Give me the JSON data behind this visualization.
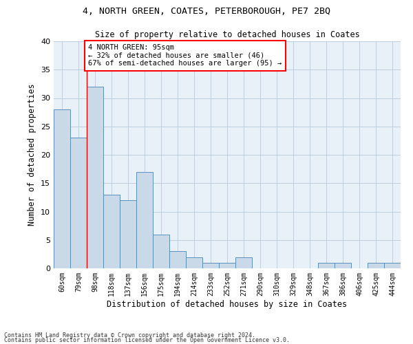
{
  "title1": "4, NORTH GREEN, COATES, PETERBOROUGH, PE7 2BQ",
  "title2": "Size of property relative to detached houses in Coates",
  "xlabel": "Distribution of detached houses by size in Coates",
  "ylabel": "Number of detached properties",
  "categories": [
    "60sqm",
    "79sqm",
    "98sqm",
    "118sqm",
    "137sqm",
    "156sqm",
    "175sqm",
    "194sqm",
    "214sqm",
    "233sqm",
    "252sqm",
    "271sqm",
    "290sqm",
    "310sqm",
    "329sqm",
    "348sqm",
    "367sqm",
    "386sqm",
    "406sqm",
    "425sqm",
    "444sqm"
  ],
  "values": [
    28,
    23,
    32,
    13,
    12,
    17,
    6,
    3,
    2,
    1,
    1,
    2,
    0,
    0,
    0,
    0,
    1,
    1,
    0,
    1,
    1
  ],
  "bar_color": "#c9d9e8",
  "bar_edge_color": "#5a8fbf",
  "grid_color": "#b8c8d8",
  "background_color": "#e8f0f8",
  "annotation_text": "4 NORTH GREEN: 95sqm\n← 32% of detached houses are smaller (46)\n67% of semi-detached houses are larger (95) →",
  "footnote1": "Contains HM Land Registry data © Crown copyright and database right 2024.",
  "footnote2": "Contains public sector information licensed under the Open Government Licence v3.0.",
  "ylim": [
    0,
    40
  ],
  "yticks": [
    0,
    5,
    10,
    15,
    20,
    25,
    30,
    35,
    40
  ],
  "title1_fontsize": 9.5,
  "title2_fontsize": 8.5,
  "xlabel_fontsize": 8.5,
  "ylabel_fontsize": 8.5,
  "xtick_fontsize": 7,
  "ytick_fontsize": 8,
  "annot_fontsize": 7.5,
  "footnote_fontsize": 6
}
